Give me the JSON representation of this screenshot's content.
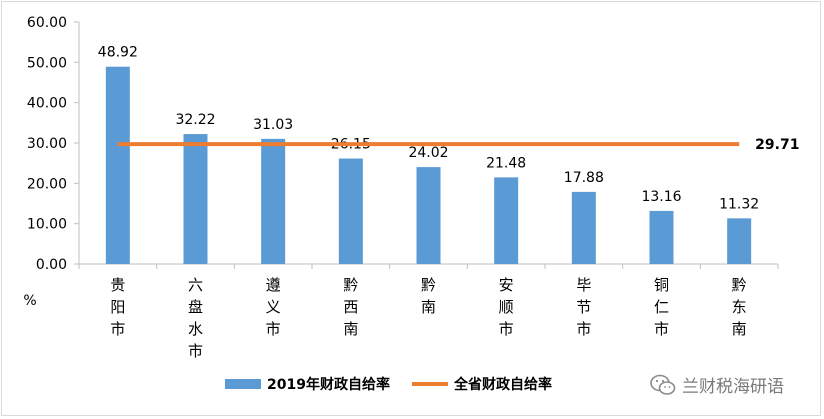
{
  "chart_data": {
    "type": "bar",
    "categories": [
      "贵阳市",
      "六盘水市",
      "遵义市",
      "黔西南",
      "黔南",
      "安顺市",
      "毕节市",
      "铜仁市",
      "黔东南"
    ],
    "series": [
      {
        "name": "2019年财政自给率",
        "values": [
          48.92,
          32.22,
          31.03,
          26.15,
          24.02,
          21.48,
          17.88,
          13.16,
          11.32
        ],
        "color": "#5b9bd5"
      }
    ],
    "reference_line": {
      "name": "全省财政自给率",
      "value": 29.71,
      "label": "29.71",
      "color": "#ed7d31"
    },
    "data_labels": [
      "48.92",
      "32.22",
      "31.03",
      "26.15",
      "24.02",
      "21.48",
      "17.88",
      "13.16",
      "11.32"
    ],
    "y_ticks": [
      "0.00",
      "10.00",
      "20.00",
      "30.00",
      "40.00",
      "50.00",
      "60.00"
    ],
    "ylim": [
      0,
      60
    ],
    "ylabel": "%",
    "grid": false,
    "legend_position": "bottom"
  },
  "watermark": "兰财税海研语"
}
